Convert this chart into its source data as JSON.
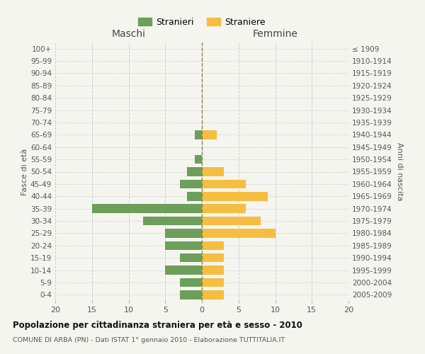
{
  "age_groups": [
    "100+",
    "95-99",
    "90-94",
    "85-89",
    "80-84",
    "75-79",
    "70-74",
    "65-69",
    "60-64",
    "55-59",
    "50-54",
    "45-49",
    "40-44",
    "35-39",
    "30-34",
    "25-29",
    "20-24",
    "15-19",
    "10-14",
    "5-9",
    "0-4"
  ],
  "birth_years": [
    "≤ 1909",
    "1910-1914",
    "1915-1919",
    "1920-1924",
    "1925-1929",
    "1930-1934",
    "1935-1939",
    "1940-1944",
    "1945-1949",
    "1950-1954",
    "1955-1959",
    "1960-1964",
    "1965-1969",
    "1970-1974",
    "1975-1979",
    "1980-1984",
    "1985-1989",
    "1990-1994",
    "1995-1999",
    "2000-2004",
    "2005-2009"
  ],
  "maschi": [
    0,
    0,
    0,
    0,
    0,
    0,
    0,
    1,
    0,
    1,
    2,
    3,
    2,
    15,
    8,
    5,
    5,
    3,
    5,
    3,
    3
  ],
  "femmine": [
    0,
    0,
    0,
    0,
    0,
    0,
    0,
    2,
    0,
    0,
    3,
    6,
    9,
    6,
    8,
    10,
    3,
    3,
    3,
    3,
    3
  ],
  "maschi_color": "#6d9e5a",
  "femmine_color": "#f5be41",
  "title": "Popolazione per cittadinanza straniera per età e sesso - 2010",
  "subtitle": "COMUNE DI ARBA (PN) - Dati ISTAT 1° gennaio 2010 - Elaborazione TUTTITALIA.IT",
  "legend_maschi": "Stranieri",
  "legend_femmine": "Straniere",
  "xlabel_left": "Maschi",
  "xlabel_right": "Femmine",
  "ylabel_left": "Fasce di età",
  "ylabel_right": "Anni di nascita",
  "xlim": 20,
  "background_color": "#f5f5f0",
  "grid_color": "#cccccc"
}
